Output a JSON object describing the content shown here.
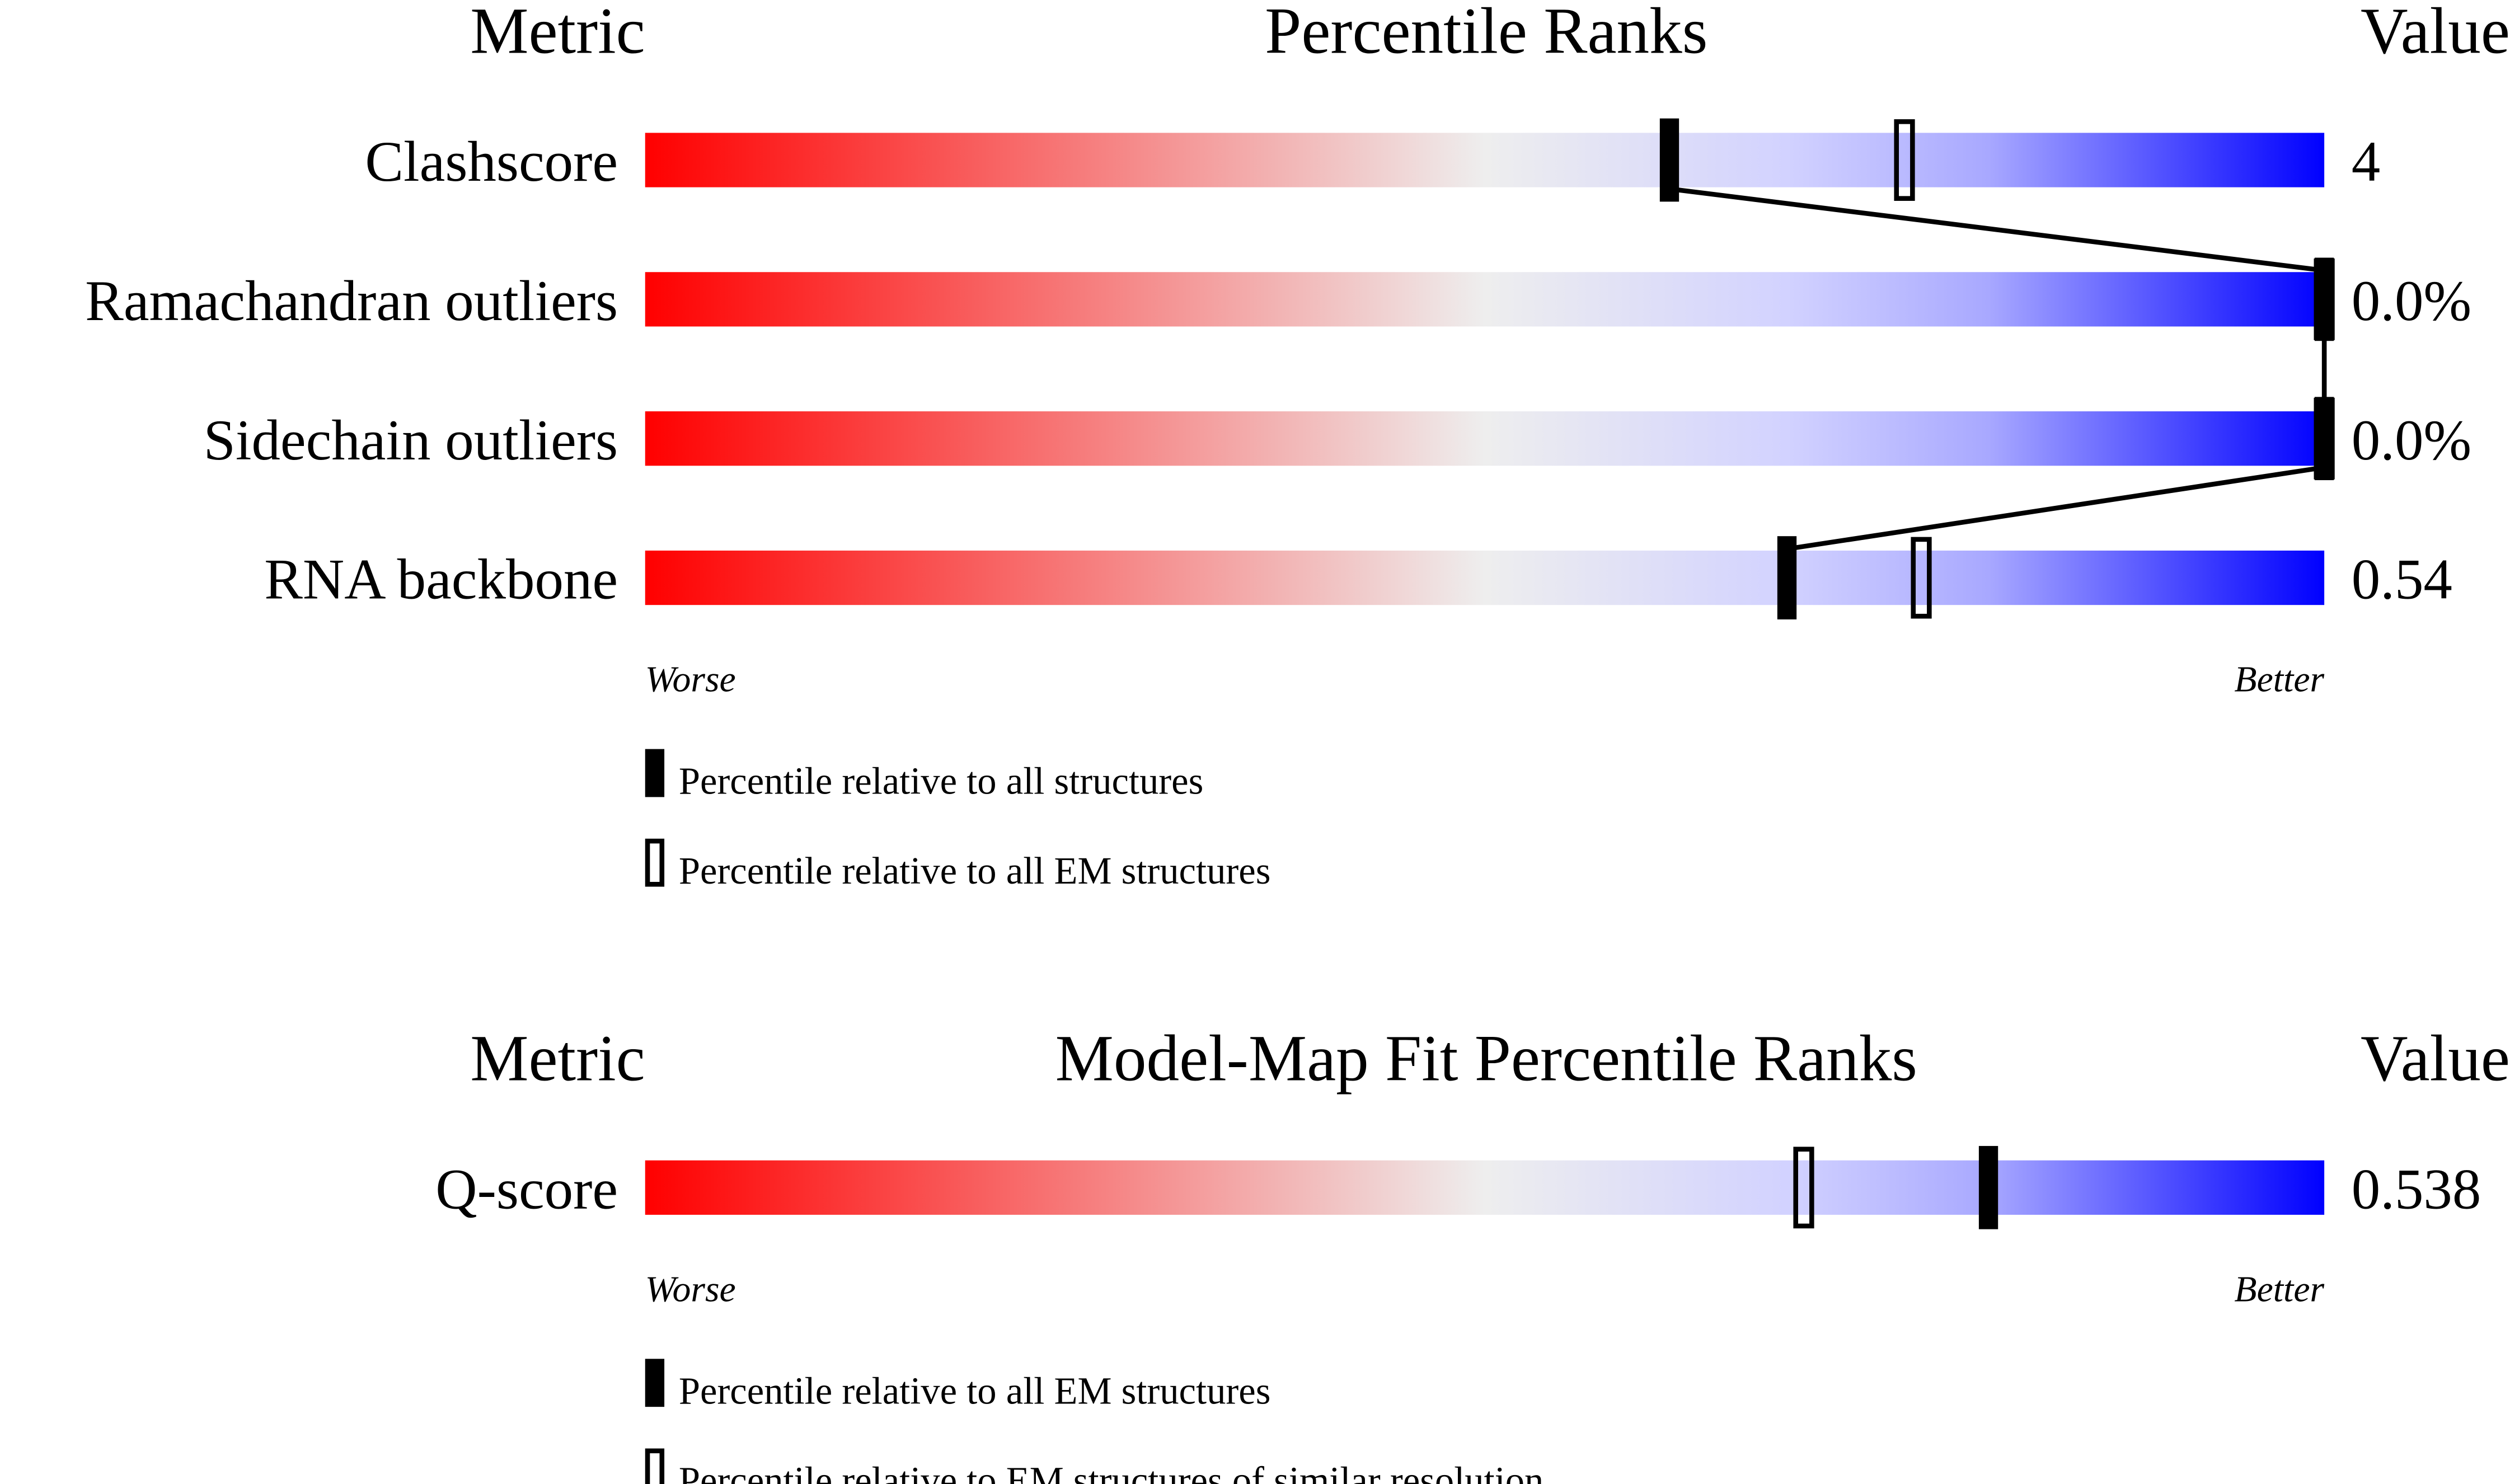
{
  "chart_data": [
    {
      "type": "percentile",
      "header": {
        "metric": "Metric",
        "title": "Percentile Ranks",
        "value": "Value"
      },
      "categories": [
        "Clashscore",
        "Ramachandran outliers",
        "Sidechain outliers",
        "RNA backbone"
      ],
      "metric_values": [
        "4",
        "0.0%",
        "0.0%",
        "0.54"
      ],
      "xlim": [
        0,
        100
      ],
      "worse": "Worse",
      "better": "Better",
      "series": [
        {
          "name": "Percentile relative to all structures",
          "style": "filled",
          "color": "#000000",
          "connect": true,
          "values": [
            61,
            100,
            100,
            68
          ]
        },
        {
          "name": "Percentile relative to all EM structures",
          "style": "open",
          "color": "#000000",
          "connect": false,
          "values": [
            75,
            100,
            100,
            76
          ]
        }
      ]
    },
    {
      "type": "percentile",
      "header": {
        "metric": "Metric",
        "title": "Model-Map Fit Percentile Ranks",
        "value": "Value"
      },
      "categories": [
        "Q-score"
      ],
      "metric_values": [
        "0.538"
      ],
      "xlim": [
        0,
        100
      ],
      "worse": "Worse",
      "better": "Better",
      "series": [
        {
          "name": "Percentile relative to all EM structures",
          "style": "filled",
          "color": "#000000",
          "connect": true,
          "values": [
            80
          ]
        },
        {
          "name": "Percentile relative to EM structures of similar resolution",
          "style": "open",
          "color": "#000000",
          "connect": false,
          "values": [
            69
          ]
        }
      ]
    }
  ]
}
